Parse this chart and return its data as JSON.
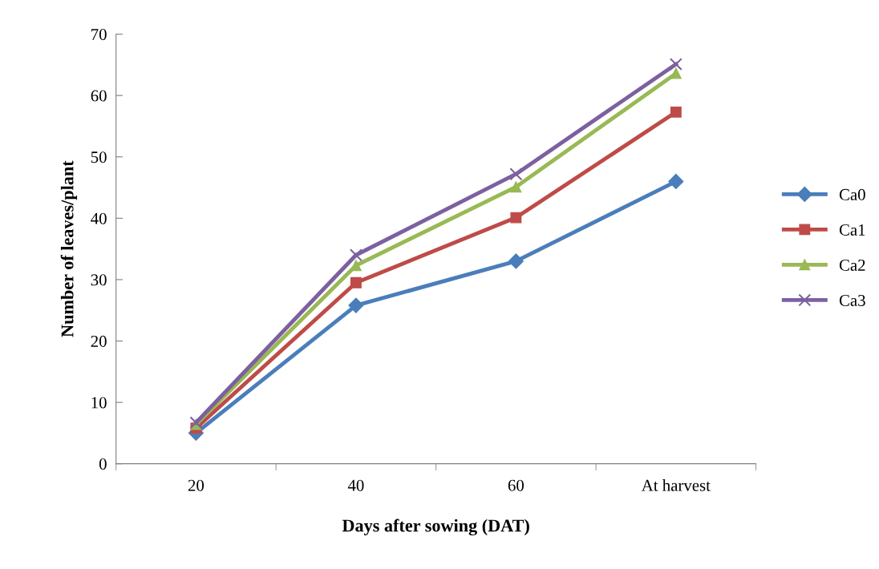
{
  "chart_data": {
    "type": "line",
    "xlabel": "Days after sowing (DAT)",
    "ylabel": "Number of leaves/plant",
    "categories": [
      "20",
      "40",
      "60",
      "At harvest"
    ],
    "series": [
      {
        "name": "Ca0",
        "color": "#4a7ebb",
        "marker": "diamond",
        "values": [
          5.0,
          25.8,
          33.0,
          46.0
        ]
      },
      {
        "name": "Ca1",
        "color": "#be4b48",
        "marker": "square",
        "values": [
          5.8,
          29.5,
          40.1,
          57.3
        ]
      },
      {
        "name": "Ca2",
        "color": "#98b954",
        "marker": "triangle",
        "values": [
          6.4,
          32.3,
          45.1,
          63.6
        ]
      },
      {
        "name": "Ca3",
        "color": "#7d60a0",
        "marker": "cross",
        "values": [
          6.7,
          34.0,
          47.2,
          65.1
        ]
      }
    ],
    "ylim": [
      0,
      70
    ],
    "yticks": [
      0,
      10,
      20,
      30,
      40,
      50,
      60,
      70
    ],
    "grid": false,
    "legend": "right",
    "line_style": "solid"
  }
}
